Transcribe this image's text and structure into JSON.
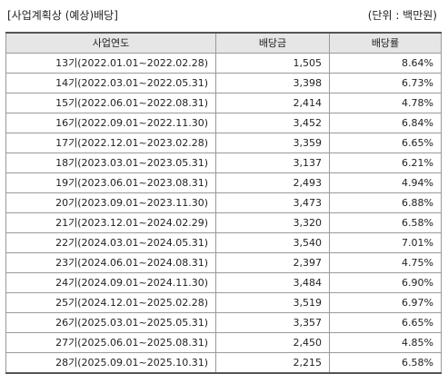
{
  "header": {
    "title": "[사업계획상 (예상)배당]",
    "unit": "(단위 : 백만원)"
  },
  "table": {
    "columns": [
      "사업연도",
      "배당금",
      "배당률"
    ],
    "rows": [
      {
        "period": "13기(2022.01.01~2022.02.28)",
        "dividend": "1,505",
        "rate": "8.64%"
      },
      {
        "period": "14기(2022.03.01~2022.05.31)",
        "dividend": "3,398",
        "rate": "6.73%"
      },
      {
        "period": "15기(2022.06.01~2022.08.31)",
        "dividend": "2,414",
        "rate": "4.78%"
      },
      {
        "period": "16기(2022.09.01~2022.11.30)",
        "dividend": "3,452",
        "rate": "6.84%"
      },
      {
        "period": "17기(2022.12.01~2023.02.28)",
        "dividend": "3,359",
        "rate": "6.65%"
      },
      {
        "period": "18기(2023.03.01~2023.05.31)",
        "dividend": "3,137",
        "rate": "6.21%"
      },
      {
        "period": "19기(2023.06.01~2023.08.31)",
        "dividend": "2,493",
        "rate": "4.94%"
      },
      {
        "period": "20기(2023.09.01~2023.11.30)",
        "dividend": "3,473",
        "rate": "6.88%"
      },
      {
        "period": "21기(2023.12.01~2024.02.29)",
        "dividend": "3,320",
        "rate": "6.58%"
      },
      {
        "period": "22기(2024.03.01~2024.05.31)",
        "dividend": "3,540",
        "rate": "7.01%"
      },
      {
        "period": "23기(2024.06.01~2024.08.31)",
        "dividend": "2,397",
        "rate": "4.75%"
      },
      {
        "period": "24기(2024.09.01~2024.11.30)",
        "dividend": "3,484",
        "rate": "6.90%"
      },
      {
        "period": "25기(2024.12.01~2025.02.28)",
        "dividend": "3,519",
        "rate": "6.97%"
      },
      {
        "period": "26기(2025.03.01~2025.05.31)",
        "dividend": "3,357",
        "rate": "6.65%"
      },
      {
        "period": "27기(2025.06.01~2025.08.31)",
        "dividend": "2,450",
        "rate": "4.85%"
      },
      {
        "period": "28기(2025.09.01~2025.10.31)",
        "dividend": "2,215",
        "rate": "6.58%"
      }
    ]
  }
}
